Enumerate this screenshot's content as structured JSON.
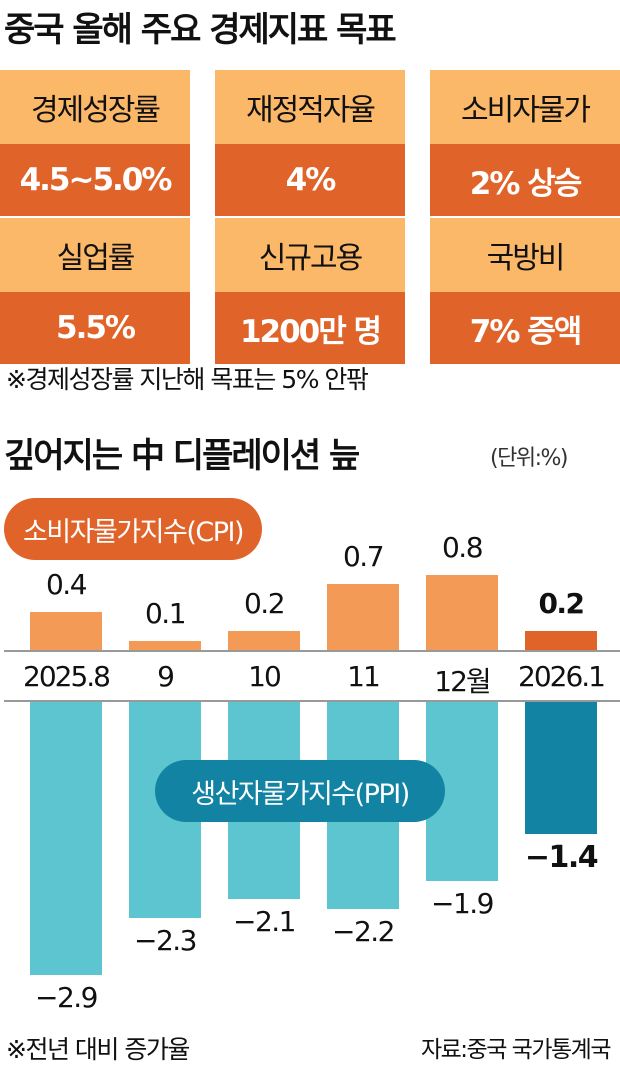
{
  "title": "중국 올해 주요 경제지표 목표",
  "targets": [
    {
      "label": "경제성장률",
      "value": "4.5~5.0%"
    },
    {
      "label": "재정적자율",
      "value": "4%"
    },
    {
      "label": "소비자물가",
      "value": "2% 상승"
    },
    {
      "label": "실업률",
      "value": "5.5%"
    },
    {
      "label": "신규고용",
      "value": "1200만 명"
    },
    {
      "label": "국방비",
      "value": "7% 증액"
    }
  ],
  "targets_note": "※경제성장률 지난해 목표는 5% 안팎",
  "colors": {
    "label_bg": "#fbb868",
    "value_bg": "#e0632a",
    "cpi": "#f49a57",
    "cpi_highlight": "#e0632a",
    "ppi": "#5cc5cf",
    "ppi_highlight": "#1283a3"
  },
  "chart_data": {
    "type": "bar",
    "title": "깊어지는 中 디플레이션 늪",
    "unit": "(단위:%)",
    "categories": [
      "2025.8",
      "9",
      "10",
      "11",
      "12월",
      "2026.1"
    ],
    "series": [
      {
        "name": "소비자물가지수(CPI)",
        "values": [
          0.4,
          0.1,
          0.2,
          0.7,
          0.8,
          0.2
        ],
        "labels": [
          "0.4",
          "0.1",
          "0.2",
          "0.7",
          "0.8",
          "0.2"
        ]
      },
      {
        "name": "생산자물가지수(PPI)",
        "values": [
          -2.9,
          -2.3,
          -2.1,
          -2.2,
          -1.9,
          -1.4
        ],
        "labels": [
          "−2.9",
          "−2.3",
          "−2.1",
          "−2.2",
          "−1.9",
          "−1.4"
        ]
      }
    ],
    "footnote": "※전년 대비 증가율",
    "source": "자료:중국 국가통계국"
  }
}
